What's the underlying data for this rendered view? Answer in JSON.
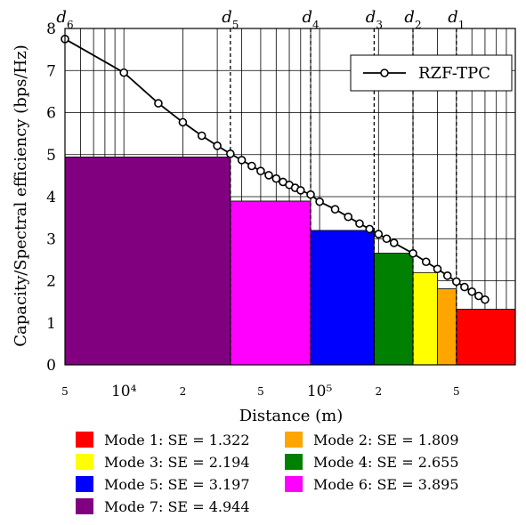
{
  "chart_data": {
    "type": "bar",
    "xlabel": "Distance (m)",
    "ylabel": "Capacity/Spectral efficiency (bps/Hz)",
    "x_scale": "log",
    "xlim": [
      5000,
      1000000
    ],
    "ylim": [
      0,
      8
    ],
    "grid": true,
    "x_ticks": [
      {
        "value": 5000,
        "label": "5"
      },
      {
        "value": 10000,
        "label": "10⁴"
      },
      {
        "value": 20000,
        "label": "2"
      },
      {
        "value": 50000,
        "label": "5"
      },
      {
        "value": 100000,
        "label": "10⁵"
      },
      {
        "value": 200000,
        "label": "2"
      },
      {
        "value": 500000,
        "label": "5"
      }
    ],
    "y_ticks": [
      0,
      1,
      2,
      3,
      4,
      5,
      6,
      7,
      8
    ],
    "thresholds": [
      {
        "label": "d6",
        "x": 5000
      },
      {
        "label": "d5",
        "x": 35000
      },
      {
        "label": "d4",
        "x": 90000
      },
      {
        "label": "d3",
        "x": 190000
      },
      {
        "label": "d2",
        "x": 300000
      },
      {
        "label": "d1",
        "x": 500000
      }
    ],
    "modes": [
      {
        "name": "Mode 1: SE = 1.322",
        "value": 1.322,
        "color": "#ff0000",
        "x_from": 500000,
        "x_to": 1000000
      },
      {
        "name": "Mode 2: SE = 1.809",
        "value": 1.809,
        "color": "#ffa500",
        "x_from": 400000,
        "x_to": 500000
      },
      {
        "name": "Mode 3: SE = 2.194",
        "value": 2.194,
        "color": "#ffff00",
        "x_from": 300000,
        "x_to": 400000
      },
      {
        "name": "Mode 4: SE = 2.655",
        "value": 2.655,
        "color": "#008000",
        "x_from": 190000,
        "x_to": 300000
      },
      {
        "name": "Mode 5: SE = 3.197",
        "value": 3.197,
        "color": "#0000ff",
        "x_from": 90000,
        "x_to": 190000
      },
      {
        "name": "Mode 6: SE = 3.895",
        "value": 3.895,
        "color": "#ff00ff",
        "x_from": 35000,
        "x_to": 90000
      },
      {
        "name": "Mode 7: SE = 4.944",
        "value": 4.944,
        "color": "#800080",
        "x_from": 5000,
        "x_to": 35000
      }
    ],
    "series": [
      {
        "name": "RZF-TPC",
        "x": [
          5000,
          10000,
          15000,
          20000,
          25000,
          30000,
          35000,
          40000,
          45000,
          50000,
          55000,
          60000,
          65000,
          70000,
          75000,
          80000,
          90000,
          100000,
          120000,
          140000,
          160000,
          180000,
          200000,
          220000,
          240000,
          300000,
          350000,
          400000,
          450000,
          500000,
          550000,
          600000,
          650000,
          700000
        ],
        "values": [
          7.75,
          6.95,
          6.22,
          5.77,
          5.45,
          5.21,
          5.02,
          4.87,
          4.73,
          4.61,
          4.51,
          4.43,
          4.35,
          4.28,
          4.21,
          4.15,
          4.05,
          3.88,
          3.7,
          3.52,
          3.36,
          3.23,
          3.11,
          3.0,
          2.9,
          2.65,
          2.45,
          2.28,
          2.12,
          1.98,
          1.85,
          1.74,
          1.64,
          1.55
        ]
      }
    ],
    "legend_position": "top-right"
  }
}
